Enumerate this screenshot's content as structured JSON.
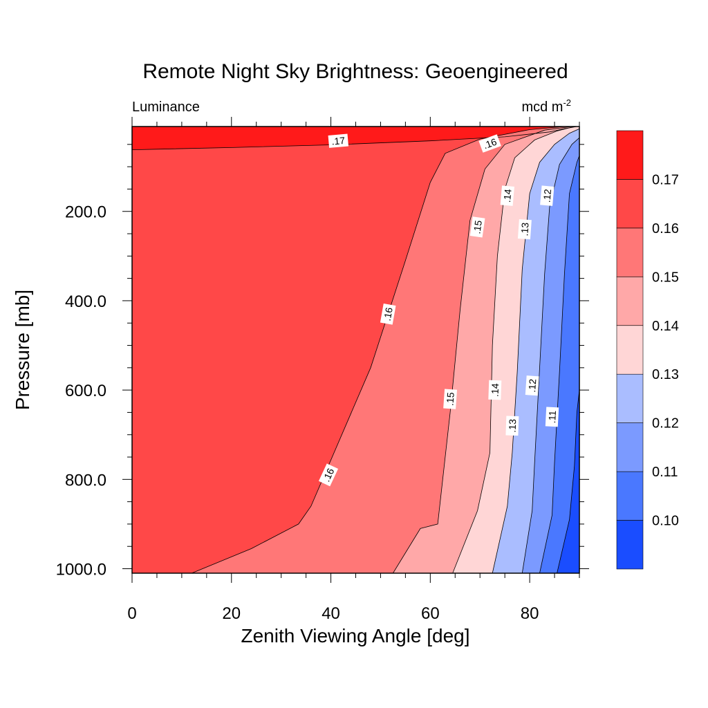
{
  "chart_data": {
    "type": "contour",
    "title": "Remote Night Sky Brightness: Geoengineered",
    "left_string": "Luminance",
    "right_string": "mcd m",
    "right_string_sup": "-2",
    "xlabel": "Zenith Viewing Angle [deg]",
    "ylabel": "Pressure [mb]",
    "xlim": [
      0,
      90
    ],
    "ylim": [
      1010,
      10
    ],
    "y_reversed": true,
    "x_ticks": [
      0,
      20,
      40,
      60,
      80
    ],
    "x_tick_labels": [
      "0",
      "20",
      "40",
      "60",
      "80"
    ],
    "y_ticks": [
      200,
      400,
      600,
      800,
      1000
    ],
    "y_tick_labels": [
      "200.0",
      "400.0",
      "600.0",
      "800.0",
      "1000.0"
    ],
    "levels": [
      0.1,
      0.11,
      0.12,
      0.13,
      0.14,
      0.15,
      0.16,
      0.17
    ],
    "level_labels": [
      "0.10",
      "0.11",
      "0.12",
      "0.13",
      "0.14",
      "0.15",
      "0.16",
      "0.17"
    ],
    "colors": [
      "#1a4dff",
      "#4a78ff",
      "#7b9aff",
      "#aabdff",
      "#ffd6d6",
      "#ffa8a8",
      "#ff7777",
      "#ff4848",
      "#ff1a1a"
    ],
    "contour_lines": [
      {
        "level": 0.17,
        "points": [
          [
            0,
            62
          ],
          [
            20,
            57
          ],
          [
            40,
            51
          ],
          [
            60,
            42
          ],
          [
            75,
            33
          ],
          [
            84,
            22
          ],
          [
            87,
            15
          ],
          [
            89.5,
            10
          ]
        ]
      },
      {
        "level": 0.16,
        "points": [
          [
            12,
            1010
          ],
          [
            24,
            955
          ],
          [
            33.5,
            900
          ],
          [
            36,
            860
          ],
          [
            48,
            550
          ],
          [
            55,
            310
          ],
          [
            60,
            135
          ],
          [
            63,
            70
          ],
          [
            70,
            38
          ],
          [
            80,
            17
          ],
          [
            87,
            10
          ]
        ]
      },
      {
        "level": 0.15,
        "points": [
          [
            52.5,
            1010
          ],
          [
            58,
            910
          ],
          [
            61.5,
            900
          ],
          [
            64,
            650
          ],
          [
            66,
            420
          ],
          [
            68,
            220
          ],
          [
            71,
            105
          ],
          [
            75,
            50
          ],
          [
            83,
            18
          ],
          [
            88.5,
            10
          ]
        ]
      },
      {
        "level": 0.14,
        "points": [
          [
            64.5,
            1010
          ],
          [
            69.5,
            870
          ],
          [
            72,
            740
          ],
          [
            72.5,
            500
          ],
          [
            73.5,
            300
          ],
          [
            75,
            150
          ],
          [
            77,
            80
          ],
          [
            81,
            40
          ],
          [
            85.5,
            20
          ],
          [
            89,
            10
          ]
        ]
      },
      {
        "level": 0.13,
        "points": [
          [
            72.5,
            1010
          ],
          [
            75.5,
            860
          ],
          [
            76.5,
            740
          ],
          [
            77.5,
            560
          ],
          [
            78.5,
            330
          ],
          [
            80,
            160
          ],
          [
            82,
            90
          ],
          [
            85,
            50
          ],
          [
            88,
            25
          ],
          [
            90,
            15
          ]
        ]
      },
      {
        "level": 0.12,
        "points": [
          [
            78.5,
            1010
          ],
          [
            80.5,
            870
          ],
          [
            81,
            760
          ],
          [
            82,
            550
          ],
          [
            83,
            340
          ],
          [
            84,
            190
          ],
          [
            86,
            95
          ],
          [
            88.5,
            50
          ],
          [
            90,
            35
          ]
        ]
      },
      {
        "level": 0.11,
        "points": [
          [
            82,
            1010
          ],
          [
            84.5,
            880
          ],
          [
            85,
            760
          ],
          [
            86,
            560
          ],
          [
            87,
            340
          ],
          [
            88,
            160
          ],
          [
            89.5,
            90
          ],
          [
            90,
            75
          ]
        ]
      },
      {
        "level": 0.1,
        "points": [
          [
            85.5,
            1010
          ],
          [
            88,
            890
          ],
          [
            89,
            770
          ],
          [
            89.5,
            650
          ],
          [
            90,
            600
          ]
        ]
      }
    ],
    "contour_labels": [
      {
        "text": ".17",
        "x": 41.5,
        "y": 42,
        "angle": -5
      },
      {
        "text": ".16",
        "x": 72,
        "y": 48,
        "angle": -20
      },
      {
        "text": ".16",
        "x": 51.5,
        "y": 430,
        "angle": -80
      },
      {
        "text": ".16",
        "x": 39.5,
        "y": 790,
        "angle": -65
      },
      {
        "text": ".15",
        "x": 69.5,
        "y": 235,
        "angle": -82
      },
      {
        "text": ".15",
        "x": 64,
        "y": 620,
        "angle": -86
      },
      {
        "text": ".14",
        "x": 75.5,
        "y": 165,
        "angle": -85
      },
      {
        "text": ".14",
        "x": 73,
        "y": 600,
        "angle": -88
      },
      {
        "text": ".13",
        "x": 79,
        "y": 240,
        "angle": -86
      },
      {
        "text": ".13",
        "x": 76.5,
        "y": 680,
        "angle": -88
      },
      {
        "text": ".12",
        "x": 83.5,
        "y": 165,
        "angle": -85
      },
      {
        "text": ".12",
        "x": 80.5,
        "y": 590,
        "angle": -86
      },
      {
        "text": ".11",
        "x": 84.5,
        "y": 660,
        "angle": -87
      }
    ]
  }
}
